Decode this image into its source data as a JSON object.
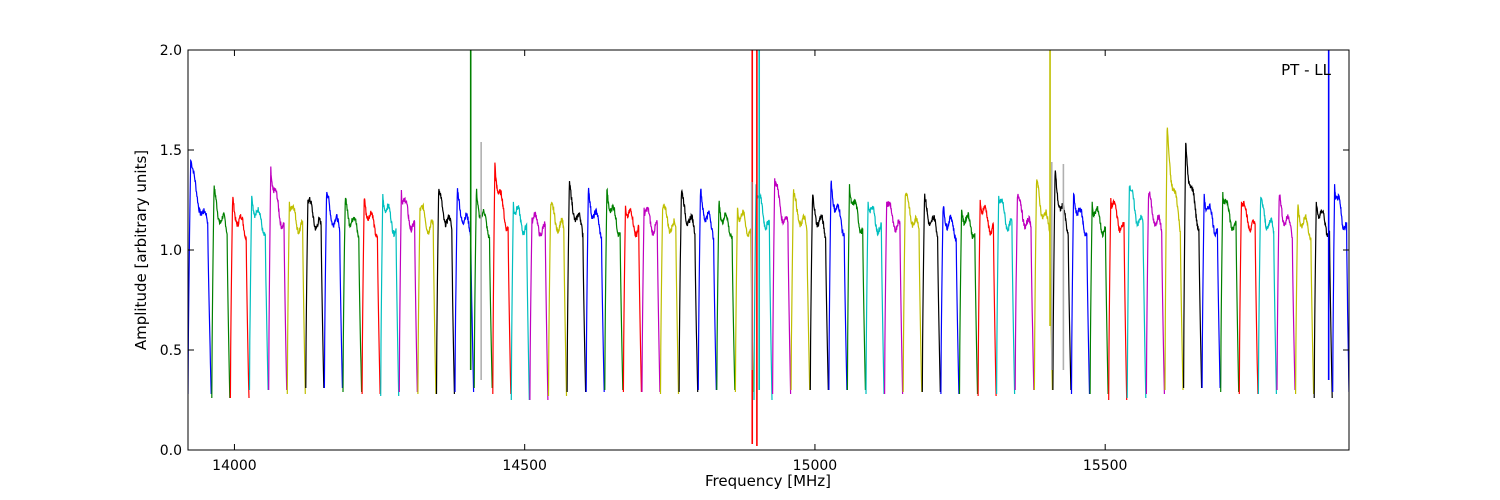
{
  "chart_data": {
    "type": "line",
    "title": "",
    "xlabel": "Frequency [MHz]",
    "ylabel": "Amplitude [arbitrary units]",
    "annotation": "PT - LL",
    "xlim": [
      13920,
      15920
    ],
    "ylim": [
      0.0,
      2.0
    ],
    "xticks": [
      14000,
      14500,
      15000,
      15500
    ],
    "xtick_labels": [
      "14000",
      "14500",
      "15000",
      "15500"
    ],
    "yticks": [
      0.0,
      0.5,
      1.0,
      1.5,
      2.0
    ],
    "ytick_labels": [
      "0.0",
      "0.5",
      "1.0",
      "1.5",
      "2.0"
    ],
    "grid": false,
    "legend": "none",
    "colors": [
      "#0000ff",
      "#008000",
      "#ff0000",
      "#00bfbf",
      "#bf00bf",
      "#bfbf00",
      "#000000"
    ],
    "subbands": [
      {
        "start": 13920,
        "end": 13960,
        "peak": 1.47,
        "floor": 0.28,
        "color": "#0000ff"
      },
      {
        "start": 13961,
        "end": 13992,
        "peak": 1.29,
        "floor": 0.26,
        "color": "#008000"
      },
      {
        "start": 13993,
        "end": 14025,
        "peak": 1.24,
        "floor": 0.26,
        "color": "#ff0000"
      },
      {
        "start": 14026,
        "end": 14058,
        "peak": 1.29,
        "floor": 0.3,
        "color": "#00bfbf"
      },
      {
        "start": 14059,
        "end": 14090,
        "peak": 1.44,
        "floor": 0.3,
        "color": "#bf00bf"
      },
      {
        "start": 14091,
        "end": 14122,
        "peak": 1.26,
        "floor": 0.28,
        "color": "#bfbf00"
      },
      {
        "start": 14123,
        "end": 14154,
        "peak": 1.27,
        "floor": 0.31,
        "color": "#000000"
      },
      {
        "start": 14155,
        "end": 14186,
        "peak": 1.28,
        "floor": 0.31,
        "color": "#0000ff"
      },
      {
        "start": 14187,
        "end": 14219,
        "peak": 1.25,
        "floor": 0.29,
        "color": "#008000"
      },
      {
        "start": 14220,
        "end": 14251,
        "peak": 1.27,
        "floor": 0.28,
        "color": "#ff0000"
      },
      {
        "start": 14252,
        "end": 14283,
        "peak": 1.3,
        "floor": 0.27,
        "color": "#00bfbf"
      },
      {
        "start": 14284,
        "end": 14315,
        "peak": 1.32,
        "floor": 0.29,
        "color": "#bf00bf"
      },
      {
        "start": 14316,
        "end": 14347,
        "peak": 1.23,
        "floor": 0.28,
        "color": "#bfbf00"
      },
      {
        "start": 14348,
        "end": 14379,
        "peak": 1.3,
        "floor": 0.28,
        "color": "#000000"
      },
      {
        "start": 14380,
        "end": 14412,
        "peak": 1.28,
        "floor": 0.29,
        "color": "#0000ff"
      },
      {
        "start": 14413,
        "end": 14444,
        "peak": 1.29,
        "floor": 0.31,
        "color": "#008000"
      },
      {
        "start": 14445,
        "end": 14476,
        "peak": 1.46,
        "floor": 0.28,
        "color": "#ff0000"
      },
      {
        "start": 14477,
        "end": 14508,
        "peak": 1.26,
        "floor": 0.25,
        "color": "#00bfbf"
      },
      {
        "start": 14509,
        "end": 14540,
        "peak": 1.18,
        "floor": 0.25,
        "color": "#bf00bf"
      },
      {
        "start": 14541,
        "end": 14572,
        "peak": 1.22,
        "floor": 0.27,
        "color": "#bfbf00"
      },
      {
        "start": 14573,
        "end": 14605,
        "peak": 1.31,
        "floor": 0.29,
        "color": "#000000"
      },
      {
        "start": 14606,
        "end": 14637,
        "peak": 1.3,
        "floor": 0.29,
        "color": "#0000ff"
      },
      {
        "start": 14638,
        "end": 14669,
        "peak": 1.32,
        "floor": 0.3,
        "color": "#008000"
      },
      {
        "start": 14670,
        "end": 14701,
        "peak": 1.24,
        "floor": 0.29,
        "color": "#ff0000"
      },
      {
        "start": 14702,
        "end": 14733,
        "peak": 1.23,
        "floor": 0.29,
        "color": "#bf00bf"
      },
      {
        "start": 14734,
        "end": 14765,
        "peak": 1.22,
        "floor": 0.28,
        "color": "#bfbf00"
      },
      {
        "start": 14766,
        "end": 14798,
        "peak": 1.28,
        "floor": 0.29,
        "color": "#000000"
      },
      {
        "start": 14799,
        "end": 14830,
        "peak": 1.29,
        "floor": 0.3,
        "color": "#0000ff"
      },
      {
        "start": 14831,
        "end": 14862,
        "peak": 1.24,
        "floor": 0.3,
        "color": "#008000"
      },
      {
        "start": 14863,
        "end": 14894,
        "peak": 1.23,
        "floor": 0.29,
        "color": "#bfbf00"
      },
      {
        "start": 14895,
        "end": 14926,
        "peak": 1.35,
        "floor": 0.25,
        "color": "#00bfbf"
      },
      {
        "start": 14927,
        "end": 14958,
        "peak": 1.38,
        "floor": 0.28,
        "color": "#bf00bf"
      },
      {
        "start": 14959,
        "end": 14991,
        "peak": 1.28,
        "floor": 0.3,
        "color": "#bfbf00"
      },
      {
        "start": 14992,
        "end": 15023,
        "peak": 1.25,
        "floor": 0.3,
        "color": "#000000"
      },
      {
        "start": 15024,
        "end": 15055,
        "peak": 1.35,
        "floor": 0.3,
        "color": "#0000ff"
      },
      {
        "start": 15056,
        "end": 15087,
        "peak": 1.35,
        "floor": 0.3,
        "color": "#008000"
      },
      {
        "start": 15088,
        "end": 15119,
        "peak": 1.26,
        "floor": 0.28,
        "color": "#00bfbf"
      },
      {
        "start": 15120,
        "end": 15151,
        "peak": 1.26,
        "floor": 0.28,
        "color": "#bf00bf"
      },
      {
        "start": 15152,
        "end": 15184,
        "peak": 1.29,
        "floor": 0.29,
        "color": "#bfbf00"
      },
      {
        "start": 15185,
        "end": 15216,
        "peak": 1.25,
        "floor": 0.29,
        "color": "#000000"
      },
      {
        "start": 15217,
        "end": 15248,
        "peak": 1.21,
        "floor": 0.28,
        "color": "#0000ff"
      },
      {
        "start": 15249,
        "end": 15280,
        "peak": 1.22,
        "floor": 0.28,
        "color": "#008000"
      },
      {
        "start": 15281,
        "end": 15312,
        "peak": 1.27,
        "floor": 0.27,
        "color": "#ff0000"
      },
      {
        "start": 15313,
        "end": 15344,
        "peak": 1.29,
        "floor": 0.28,
        "color": "#00bfbf"
      },
      {
        "start": 15345,
        "end": 15377,
        "peak": 1.28,
        "floor": 0.3,
        "color": "#bf00bf"
      },
      {
        "start": 15378,
        "end": 15409,
        "peak": 1.35,
        "floor": 0.3,
        "color": "#bfbf00"
      },
      {
        "start": 15410,
        "end": 15441,
        "peak": 1.39,
        "floor": 0.3,
        "color": "#000000"
      },
      {
        "start": 15442,
        "end": 15473,
        "peak": 1.3,
        "floor": 0.28,
        "color": "#0000ff"
      },
      {
        "start": 15474,
        "end": 15505,
        "peak": 1.26,
        "floor": 0.28,
        "color": "#008000"
      },
      {
        "start": 15506,
        "end": 15537,
        "peak": 1.28,
        "floor": 0.25,
        "color": "#ff0000"
      },
      {
        "start": 15538,
        "end": 15570,
        "peak": 1.34,
        "floor": 0.26,
        "color": "#00bfbf"
      },
      {
        "start": 15571,
        "end": 15602,
        "peak": 1.28,
        "floor": 0.28,
        "color": "#bf00bf"
      },
      {
        "start": 15603,
        "end": 15634,
        "peak": 1.62,
        "floor": 0.3,
        "color": "#bfbf00"
      },
      {
        "start": 15635,
        "end": 15666,
        "peak": 1.56,
        "floor": 0.31,
        "color": "#000000"
      },
      {
        "start": 15667,
        "end": 15698,
        "peak": 1.3,
        "floor": 0.31,
        "color": "#0000ff"
      },
      {
        "start": 15699,
        "end": 15730,
        "peak": 1.31,
        "floor": 0.29,
        "color": "#008000"
      },
      {
        "start": 15731,
        "end": 15763,
        "peak": 1.26,
        "floor": 0.28,
        "color": "#ff0000"
      },
      {
        "start": 15764,
        "end": 15795,
        "peak": 1.24,
        "floor": 0.28,
        "color": "#00bfbf"
      },
      {
        "start": 15796,
        "end": 15827,
        "peak": 1.26,
        "floor": 0.3,
        "color": "#bf00bf"
      },
      {
        "start": 15828,
        "end": 15859,
        "peak": 1.21,
        "floor": 0.28,
        "color": "#bfbf00"
      },
      {
        "start": 15860,
        "end": 15891,
        "peak": 1.26,
        "floor": 0.26,
        "color": "#000000"
      },
      {
        "start": 15892,
        "end": 15920,
        "peak": 1.35,
        "floor": 0.29,
        "color": "#0000ff"
      }
    ],
    "spikes": [
      {
        "x": 14407,
        "ymin": 0.4,
        "ymax": 2.0,
        "color": "#008000"
      },
      {
        "x": 14425,
        "ymin": 0.35,
        "ymax": 1.54,
        "color": "#b0b0b0"
      },
      {
        "x": 14892,
        "ymin": 0.03,
        "ymax": 2.0,
        "color": "#ff0000"
      },
      {
        "x": 14900,
        "ymin": 0.02,
        "ymax": 2.0,
        "color": "#ff0000"
      },
      {
        "x": 14904,
        "ymin": 0.3,
        "ymax": 2.0,
        "color": "#00bfbf"
      },
      {
        "x": 14891,
        "ymin": 0.4,
        "ymax": 1.34,
        "color": "#b0b0b0"
      },
      {
        "x": 15405,
        "ymin": 0.62,
        "ymax": 2.0,
        "color": "#bfbf00"
      },
      {
        "x": 15408,
        "ymin": 0.4,
        "ymax": 1.44,
        "color": "#b0b0b0"
      },
      {
        "x": 15428,
        "ymin": 0.4,
        "ymax": 1.43,
        "color": "#b0b0b0"
      },
      {
        "x": 15885,
        "ymin": 0.35,
        "ymax": 2.0,
        "color": "#0000ff"
      }
    ]
  }
}
